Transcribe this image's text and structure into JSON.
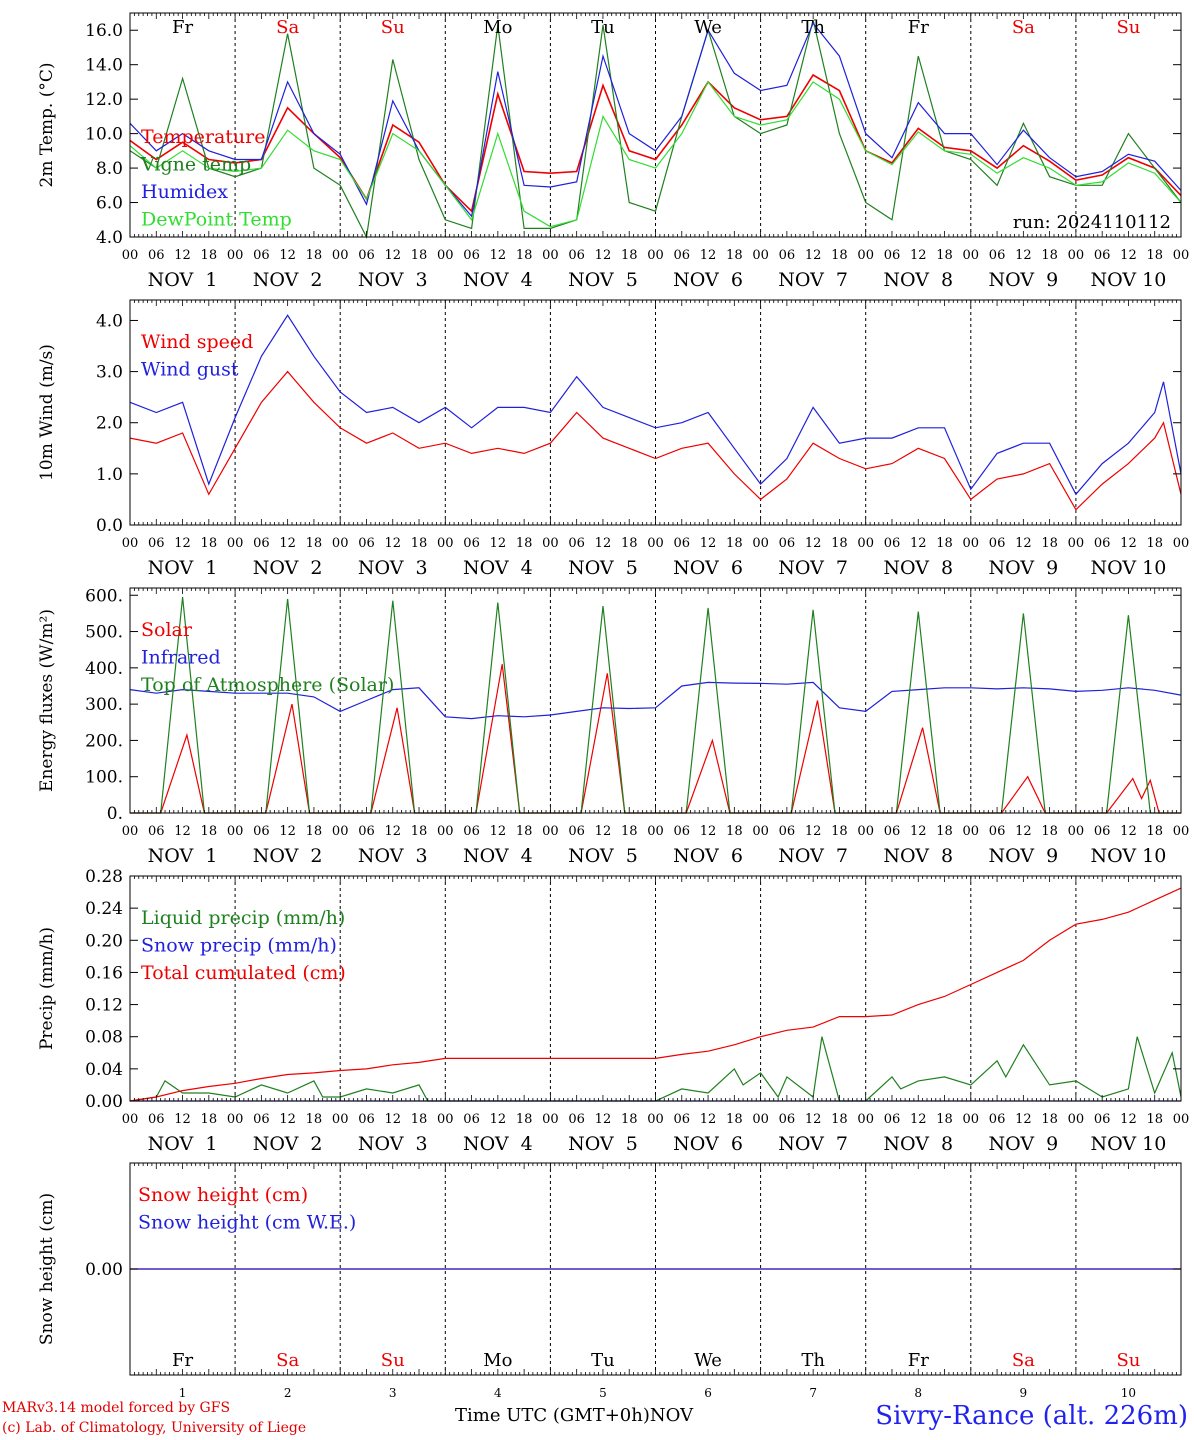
{
  "chart_data": [
    {
      "type": "line",
      "ylabel": "2m Temp. (°C)",
      "ylim": [
        4,
        17
      ],
      "yticks": [
        "4.0",
        "6.0",
        "8.0",
        "10.0",
        "12.0",
        "14.0",
        "16.0"
      ],
      "run_label": "run: 2024110112",
      "series": [
        {
          "name": "Temperature",
          "color": "#ee0000",
          "x": [
            0,
            6,
            12,
            18,
            24,
            30,
            36,
            42,
            48,
            54,
            60,
            66,
            72,
            78,
            84,
            90,
            96,
            102,
            108,
            114,
            120,
            126,
            132,
            138,
            144,
            150,
            156,
            162,
            168,
            174,
            180,
            186,
            192,
            198,
            204,
            210,
            216,
            222,
            228,
            234,
            240
          ],
          "y": [
            9.6,
            8.5,
            9.5,
            8.5,
            8.3,
            8.5,
            11.5,
            10.0,
            8.6,
            6.2,
            10.5,
            9.5,
            7.0,
            5.5,
            12.3,
            7.8,
            7.7,
            7.8,
            12.8,
            9.0,
            8.5,
            10.5,
            13.0,
            11.5,
            10.8,
            11.0,
            13.4,
            12.5,
            9.0,
            8.3,
            10.3,
            9.2,
            9.0,
            8.0,
            9.3,
            8.4,
            7.3,
            7.6,
            8.6,
            8.0,
            6.4
          ]
        },
        {
          "name": "Vigne temp",
          "color": "#208020",
          "x": [
            0,
            6,
            12,
            18,
            24,
            30,
            36,
            42,
            48,
            54,
            60,
            66,
            72,
            78,
            84,
            90,
            96,
            102,
            108,
            114,
            120,
            126,
            132,
            138,
            144,
            150,
            156,
            162,
            168,
            174,
            180,
            186,
            192,
            198,
            204,
            210,
            216,
            222,
            228,
            234,
            240
          ],
          "y": [
            9.0,
            8.0,
            13.2,
            8.0,
            7.5,
            8.0,
            15.8,
            8.0,
            7.0,
            4.0,
            14.3,
            8.5,
            5.0,
            4.5,
            16.3,
            4.5,
            4.5,
            5.0,
            16.3,
            6.0,
            5.5,
            11.0,
            16.0,
            11.0,
            10.0,
            10.5,
            16.6,
            10.0,
            6.0,
            5.0,
            14.5,
            9.0,
            8.5,
            7.0,
            10.6,
            7.5,
            7.0,
            7.0,
            10.0,
            8.0,
            6.0
          ]
        },
        {
          "name": "Humidex",
          "color": "#2020dd",
          "x": [
            0,
            6,
            12,
            18,
            24,
            30,
            36,
            42,
            48,
            54,
            60,
            66,
            72,
            78,
            84,
            90,
            96,
            102,
            108,
            114,
            120,
            126,
            132,
            138,
            144,
            150,
            156,
            162,
            168,
            174,
            180,
            186,
            192,
            198,
            204,
            210,
            216,
            222,
            228,
            234,
            240
          ],
          "y": [
            10.6,
            9.0,
            10.0,
            9.0,
            8.5,
            8.5,
            13.0,
            10.0,
            8.8,
            5.9,
            11.9,
            9.0,
            7.0,
            5.2,
            13.6,
            7.0,
            6.9,
            7.2,
            14.5,
            10.0,
            9.0,
            11.0,
            16.0,
            13.5,
            12.5,
            12.8,
            16.4,
            14.5,
            10.0,
            8.6,
            11.8,
            10.0,
            10.0,
            8.2,
            10.2,
            8.6,
            7.5,
            7.8,
            8.8,
            8.4,
            6.7
          ]
        },
        {
          "name": "DewPoint Temp",
          "color": "#30dd30",
          "x": [
            0,
            6,
            12,
            18,
            24,
            30,
            36,
            42,
            48,
            54,
            60,
            66,
            72,
            78,
            84,
            90,
            96,
            102,
            108,
            114,
            120,
            126,
            132,
            138,
            144,
            150,
            156,
            162,
            168,
            174,
            180,
            186,
            192,
            198,
            204,
            210,
            216,
            222,
            228,
            234,
            240
          ],
          "y": [
            9.3,
            8.0,
            9.0,
            8.0,
            7.8,
            8.0,
            10.2,
            9.0,
            8.5,
            6.2,
            10.0,
            9.0,
            7.0,
            5.0,
            10.0,
            5.5,
            4.6,
            5.0,
            11.0,
            8.5,
            8.0,
            10.0,
            13.0,
            11.0,
            10.5,
            10.8,
            13.0,
            12.0,
            9.0,
            8.2,
            10.1,
            9.0,
            8.8,
            7.7,
            8.6,
            8.0,
            7.0,
            7.2,
            8.3,
            7.7,
            6.0
          ]
        }
      ]
    },
    {
      "type": "line",
      "ylabel": "10m Wind (m/s)",
      "ylim": [
        0,
        4.4
      ],
      "yticks": [
        "0.0",
        "1.0",
        "2.0",
        "3.0",
        "4.0"
      ],
      "series": [
        {
          "name": "Wind speed",
          "color": "#ee0000",
          "x": [
            0,
            6,
            12,
            18,
            24,
            30,
            36,
            42,
            48,
            54,
            60,
            66,
            72,
            78,
            84,
            90,
            96,
            102,
            108,
            114,
            120,
            126,
            132,
            138,
            144,
            150,
            156,
            162,
            168,
            174,
            180,
            186,
            192,
            198,
            204,
            210,
            216,
            222,
            228,
            234,
            236,
            240
          ],
          "y": [
            1.7,
            1.6,
            1.8,
            0.6,
            1.5,
            2.4,
            3.0,
            2.4,
            1.9,
            1.6,
            1.8,
            1.5,
            1.6,
            1.4,
            1.5,
            1.4,
            1.6,
            2.2,
            1.7,
            1.5,
            1.3,
            1.5,
            1.6,
            1.0,
            0.5,
            0.9,
            1.6,
            1.3,
            1.1,
            1.2,
            1.5,
            1.3,
            0.5,
            0.9,
            1.0,
            1.2,
            0.3,
            0.8,
            1.2,
            1.7,
            2.0,
            0.6
          ]
        },
        {
          "name": "Wind gust",
          "color": "#2020dd",
          "x": [
            0,
            6,
            12,
            18,
            24,
            30,
            36,
            42,
            48,
            54,
            60,
            66,
            72,
            78,
            84,
            90,
            96,
            102,
            108,
            114,
            120,
            126,
            132,
            138,
            144,
            150,
            156,
            162,
            168,
            174,
            180,
            186,
            192,
            198,
            204,
            210,
            216,
            222,
            228,
            234,
            236,
            240
          ],
          "y": [
            2.4,
            2.2,
            2.4,
            0.8,
            2.1,
            3.3,
            4.1,
            3.3,
            2.6,
            2.2,
            2.3,
            2.0,
            2.3,
            1.9,
            2.3,
            2.3,
            2.2,
            2.9,
            2.3,
            2.1,
            1.9,
            2.0,
            2.2,
            1.5,
            0.8,
            1.3,
            2.3,
            1.6,
            1.7,
            1.7,
            1.9,
            1.9,
            0.7,
            1.4,
            1.6,
            1.6,
            0.6,
            1.2,
            1.6,
            2.2,
            2.8,
            1.0
          ]
        }
      ]
    },
    {
      "type": "line",
      "ylabel": "Energy fluxes (W/m²)",
      "ylim": [
        0,
        620
      ],
      "yticks": [
        "0.",
        "100.",
        "200.",
        "300.",
        "400.",
        "500.",
        "600."
      ],
      "series": [
        {
          "name": "Solar",
          "color": "#ee0000",
          "x": [
            0,
            7,
            13,
            17,
            24,
            31,
            37,
            41,
            48,
            55,
            61,
            65,
            72,
            79,
            85,
            89,
            96,
            103,
            109,
            113,
            120,
            127,
            133,
            137,
            144,
            151,
            157,
            161,
            168,
            175,
            181,
            185,
            192,
            199,
            205,
            209,
            216,
            223,
            229,
            231,
            233,
            235,
            240
          ],
          "y": [
            0,
            0,
            215,
            0,
            0,
            0,
            300,
            0,
            0,
            0,
            290,
            0,
            0,
            0,
            410,
            0,
            0,
            0,
            385,
            0,
            0,
            0,
            200,
            0,
            0,
            0,
            310,
            0,
            0,
            0,
            235,
            0,
            0,
            0,
            100,
            0,
            0,
            0,
            95,
            40,
            90,
            0,
            0
          ]
        },
        {
          "name": "Infrared",
          "color": "#2020dd",
          "x": [
            0,
            6,
            12,
            18,
            24,
            30,
            36,
            42,
            48,
            54,
            60,
            66,
            72,
            78,
            84,
            90,
            96,
            102,
            108,
            114,
            120,
            126,
            132,
            138,
            144,
            150,
            156,
            162,
            168,
            174,
            180,
            186,
            192,
            198,
            204,
            210,
            216,
            222,
            228,
            234,
            240
          ],
          "y": [
            340,
            330,
            340,
            335,
            330,
            330,
            330,
            320,
            280,
            310,
            340,
            345,
            265,
            260,
            268,
            265,
            270,
            280,
            290,
            288,
            290,
            350,
            360,
            358,
            357,
            355,
            360,
            290,
            280,
            335,
            340,
            345,
            345,
            342,
            345,
            342,
            335,
            338,
            345,
            338,
            325
          ]
        },
        {
          "name": "Top of Atmosphere (Solar)",
          "color": "#208020",
          "x": [
            0,
            7,
            12,
            17,
            24,
            31,
            36,
            41,
            48,
            55,
            60,
            65,
            72,
            79,
            84,
            89,
            96,
            103,
            108,
            113,
            120,
            127,
            132,
            137,
            144,
            151,
            156,
            161,
            168,
            175,
            180,
            185,
            192,
            199,
            204,
            209,
            216,
            223,
            228,
            233,
            240
          ],
          "y": [
            0,
            0,
            595,
            0,
            0,
            0,
            590,
            0,
            0,
            0,
            585,
            0,
            0,
            0,
            580,
            0,
            0,
            0,
            570,
            0,
            0,
            0,
            565,
            0,
            0,
            0,
            560,
            0,
            0,
            0,
            555,
            0,
            0,
            0,
            550,
            0,
            0,
            0,
            545,
            0,
            0
          ]
        }
      ]
    },
    {
      "type": "line",
      "ylabel": "Precip (mm/h)",
      "ylim": [
        0,
        0.28
      ],
      "yticks": [
        "0.00",
        "0.04",
        "0.08",
        "0.12",
        "0.16",
        "0.20",
        "0.24",
        "0.28"
      ],
      "series": [
        {
          "name": "Liquid precip (mm/h)",
          "color": "#208020",
          "x": [
            0,
            6,
            8,
            12,
            18,
            24,
            30,
            36,
            42,
            44,
            48,
            54,
            60,
            66,
            68,
            72,
            84,
            96,
            108,
            120,
            126,
            132,
            138,
            140,
            144,
            148,
            150,
            156,
            158,
            162,
            168,
            174,
            176,
            180,
            186,
            192,
            198,
            200,
            204,
            210,
            216,
            222,
            228,
            230,
            234,
            238,
            240
          ],
          "y": [
            0,
            0.005,
            0.025,
            0.01,
            0.01,
            0.005,
            0.02,
            0.01,
            0.025,
            0.005,
            0.005,
            0.015,
            0.01,
            0.02,
            0.0,
            0.0,
            0.0,
            0.0,
            0.0,
            0.0,
            0.015,
            0.01,
            0.04,
            0.02,
            0.035,
            0.005,
            0.03,
            0.005,
            0.08,
            0.0,
            0.0,
            0.03,
            0.015,
            0.025,
            0.03,
            0.02,
            0.05,
            0.03,
            0.07,
            0.02,
            0.025,
            0.005,
            0.015,
            0.08,
            0.01,
            0.06,
            0.005
          ]
        },
        {
          "name": "Snow precip (mm/h)",
          "color": "#2020dd",
          "x": [
            0,
            240
          ],
          "y": [
            0,
            0
          ]
        },
        {
          "name": "Total cumulated (cm)",
          "color": "#ee0000",
          "x": [
            0,
            6,
            12,
            18,
            24,
            30,
            36,
            42,
            48,
            54,
            60,
            66,
            72,
            84,
            96,
            108,
            120,
            126,
            132,
            138,
            144,
            150,
            156,
            162,
            168,
            174,
            180,
            186,
            192,
            198,
            204,
            210,
            216,
            222,
            228,
            234,
            240
          ],
          "y": [
            0,
            0.005,
            0.013,
            0.018,
            0.022,
            0.028,
            0.033,
            0.035,
            0.038,
            0.04,
            0.045,
            0.048,
            0.053,
            0.053,
            0.053,
            0.053,
            0.053,
            0.058,
            0.062,
            0.07,
            0.08,
            0.088,
            0.092,
            0.105,
            0.105,
            0.107,
            0.12,
            0.13,
            0.145,
            0.16,
            0.175,
            0.2,
            0.22,
            0.226,
            0.235,
            0.25,
            0.265
          ]
        }
      ]
    },
    {
      "type": "line",
      "ylabel": "Snow height (cm)",
      "ylim": [
        -1,
        1
      ],
      "yticks": [
        "0.00"
      ],
      "series": [
        {
          "name": "Snow height (cm)",
          "color": "#ee0000",
          "x": [
            0,
            240
          ],
          "y": [
            0,
            0
          ]
        },
        {
          "name": "Snow height (cm W.E.)",
          "color": "#2020dd",
          "x": [
            0,
            240
          ],
          "y": [
            0,
            0
          ]
        }
      ]
    }
  ],
  "x_axis": {
    "hours_per_day": 24,
    "days": 10,
    "hour_ticks": [
      "00",
      "06",
      "12",
      "18"
    ],
    "date_labels": [
      "NOV  1",
      "NOV  2",
      "NOV  3",
      "NOV  4",
      "NOV  5",
      "NOV  6",
      "NOV  7",
      "NOV  8",
      "NOV  9",
      "NOV 10"
    ],
    "weekdays": [
      "Fr",
      "Sa",
      "Su",
      "Mo",
      "Tu",
      "We",
      "Th",
      "Fr",
      "Sa",
      "Su"
    ],
    "weekend": [
      false,
      true,
      true,
      false,
      false,
      false,
      false,
      false,
      true,
      true
    ],
    "weekday_color": "#000000",
    "weekend_color": "#ee0000",
    "day_numbers": [
      "1",
      "2",
      "3",
      "4",
      "5",
      "6",
      "7",
      "8",
      "9",
      "10"
    ],
    "month_label": "NOV",
    "xlabel": "Time UTC (GMT+0h)"
  },
  "footer": {
    "model_line": "MARv3.14 model forced by GFS",
    "credit_line": "(c) Lab. of Climatology, University of Liege",
    "station": "Sivry-Rance (alt. 226m)"
  }
}
